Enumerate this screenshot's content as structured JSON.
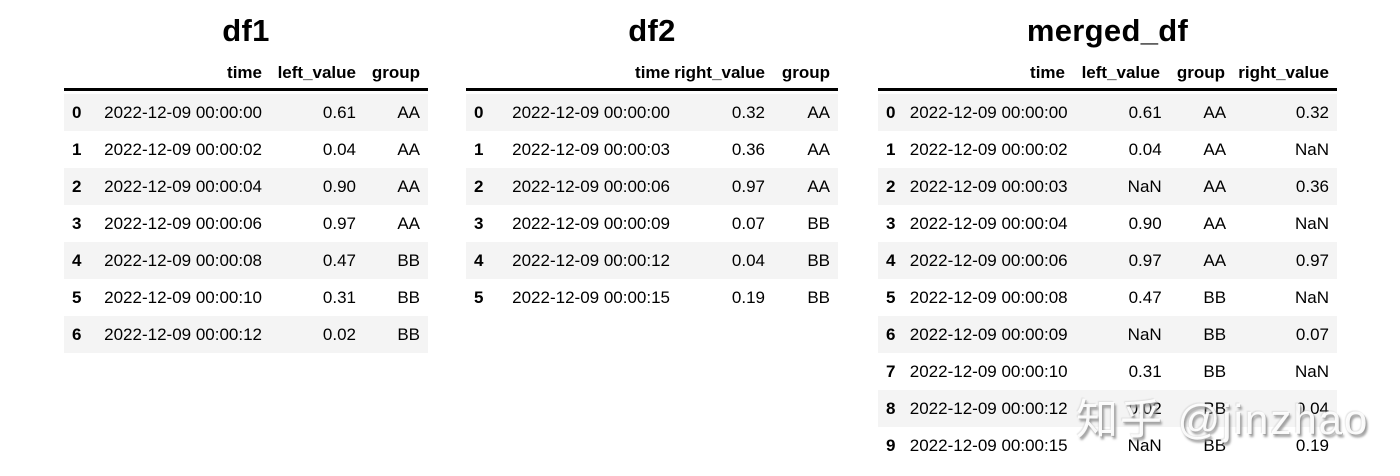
{
  "colors": {
    "row_stripe": "#f4f4f4",
    "text": "#000000",
    "header_rule": "#000000",
    "watermark_text": "#ffffff"
  },
  "watermark": {
    "text": "知乎 @jinzhao"
  },
  "chart_data": [
    {
      "type": "table",
      "title": "df1",
      "columns": [
        "time",
        "left_value",
        "group"
      ],
      "index_header": "",
      "rows": [
        [
          "0",
          "2022-12-09 00:00:00",
          "0.61",
          "AA"
        ],
        [
          "1",
          "2022-12-09 00:00:02",
          "0.04",
          "AA"
        ],
        [
          "2",
          "2022-12-09 00:00:04",
          "0.90",
          "AA"
        ],
        [
          "3",
          "2022-12-09 00:00:06",
          "0.97",
          "AA"
        ],
        [
          "4",
          "2022-12-09 00:00:08",
          "0.47",
          "BB"
        ],
        [
          "5",
          "2022-12-09 00:00:10",
          "0.31",
          "BB"
        ],
        [
          "6",
          "2022-12-09 00:00:12",
          "0.02",
          "BB"
        ]
      ]
    },
    {
      "type": "table",
      "title": "df2",
      "columns": [
        "time",
        "right_value",
        "group"
      ],
      "index_header": "",
      "rows": [
        [
          "0",
          "2022-12-09 00:00:00",
          "0.32",
          "AA"
        ],
        [
          "1",
          "2022-12-09 00:00:03",
          "0.36",
          "AA"
        ],
        [
          "2",
          "2022-12-09 00:00:06",
          "0.97",
          "AA"
        ],
        [
          "3",
          "2022-12-09 00:00:09",
          "0.07",
          "BB"
        ],
        [
          "4",
          "2022-12-09 00:00:12",
          "0.04",
          "BB"
        ],
        [
          "5",
          "2022-12-09 00:00:15",
          "0.19",
          "BB"
        ]
      ]
    },
    {
      "type": "table",
      "title": "merged_df",
      "columns": [
        "time",
        "left_value",
        "group",
        "right_value"
      ],
      "index_header": "",
      "rows": [
        [
          "0",
          "2022-12-09 00:00:00",
          "0.61",
          "AA",
          "0.32"
        ],
        [
          "1",
          "2022-12-09 00:00:02",
          "0.04",
          "AA",
          "NaN"
        ],
        [
          "2",
          "2022-12-09 00:00:03",
          "NaN",
          "AA",
          "0.36"
        ],
        [
          "3",
          "2022-12-09 00:00:04",
          "0.90",
          "AA",
          "NaN"
        ],
        [
          "4",
          "2022-12-09 00:00:06",
          "0.97",
          "AA",
          "0.97"
        ],
        [
          "5",
          "2022-12-09 00:00:08",
          "0.47",
          "BB",
          "NaN"
        ],
        [
          "6",
          "2022-12-09 00:00:09",
          "NaN",
          "BB",
          "0.07"
        ],
        [
          "7",
          "2022-12-09 00:00:10",
          "0.31",
          "BB",
          "NaN"
        ],
        [
          "8",
          "2022-12-09 00:00:12",
          "0.02",
          "BB",
          "0.04"
        ],
        [
          "9",
          "2022-12-09 00:00:15",
          "NaN",
          "BB",
          "0.19"
        ]
      ]
    }
  ]
}
